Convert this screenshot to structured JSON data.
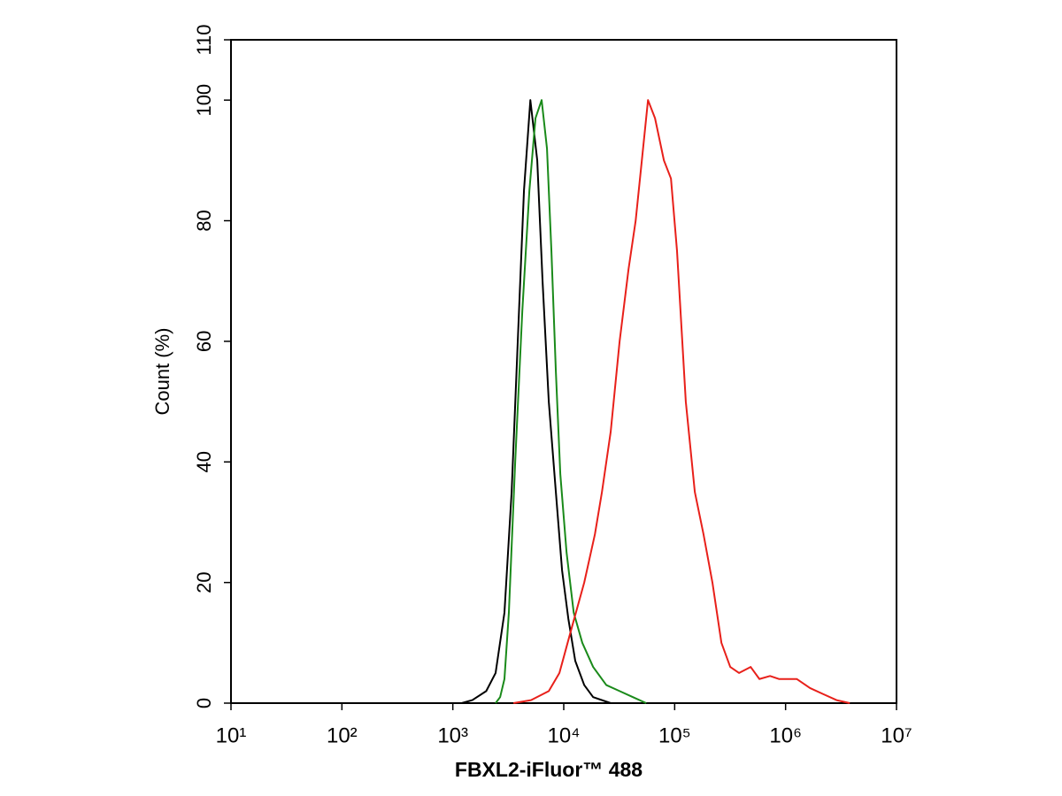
{
  "chart_data": {
    "type": "line",
    "xlabel": "FBXL2-iFluor™ 488",
    "ylabel": "Count  (%)",
    "xscale": "log",
    "xlim": [
      10,
      10000000
    ],
    "xticks": [
      {
        "value": 10,
        "label": "10¹"
      },
      {
        "value": 100,
        "label": "10²"
      },
      {
        "value": 1000,
        "label": "10³"
      },
      {
        "value": 10000,
        "label": "10⁴"
      },
      {
        "value": 100000,
        "label": "10⁵"
      },
      {
        "value": 1000000,
        "label": "10⁶"
      },
      {
        "value": 10000000,
        "label": "10⁷"
      }
    ],
    "ylim": [
      0,
      110
    ],
    "yticks": [
      0,
      20,
      40,
      60,
      80,
      100,
      110
    ],
    "series": [
      {
        "color": "#000000",
        "x": [
          1200,
          1500,
          2000,
          2430,
          2920,
          3390,
          3850,
          4380,
          5000,
          5770,
          6440,
          7330,
          8490,
          9660,
          11000,
          12700,
          15300,
          18400,
          26500
        ],
        "values": [
          0,
          0.5,
          2,
          5,
          15,
          35,
          60,
          85,
          100,
          90,
          70,
          50,
          35,
          22,
          14,
          7,
          3,
          1,
          0
        ]
      },
      {
        "color": "#1a8a1a",
        "x": [
          2430,
          2670,
          2920,
          3200,
          3650,
          4230,
          4900,
          5560,
          6320,
          7060,
          7740,
          8490,
          9310,
          10600,
          12300,
          14700,
          18400,
          24200,
          31900,
          42000,
          55400
        ],
        "values": [
          0,
          1,
          4,
          15,
          40,
          65,
          85,
          97,
          100,
          92,
          75,
          55,
          38,
          25,
          15,
          10,
          6,
          3,
          2,
          1,
          0
        ]
      },
      {
        "color": "#e8201a",
        "x": [
          3520,
          5070,
          7330,
          9140,
          11600,
          15300,
          19100,
          22100,
          26500,
          31900,
          38400,
          44500,
          50600,
          57500,
          66500,
          80000,
          92600,
          105000,
          126000,
          152000,
          182000,
          219000,
          264000,
          317000,
          381000,
          484000,
          581000,
          724000,
          871000,
          1260000,
          1660000,
          2180000,
          2880000,
          3790000
        ],
        "values": [
          0,
          0.5,
          2,
          5,
          12,
          20,
          28,
          35,
          45,
          60,
          72,
          80,
          90,
          100,
          97,
          90,
          87,
          75,
          50,
          35,
          28,
          20,
          10,
          6,
          5,
          6,
          4,
          4.5,
          4,
          4,
          2.5,
          1.5,
          0.5,
          0
        ]
      }
    ]
  }
}
